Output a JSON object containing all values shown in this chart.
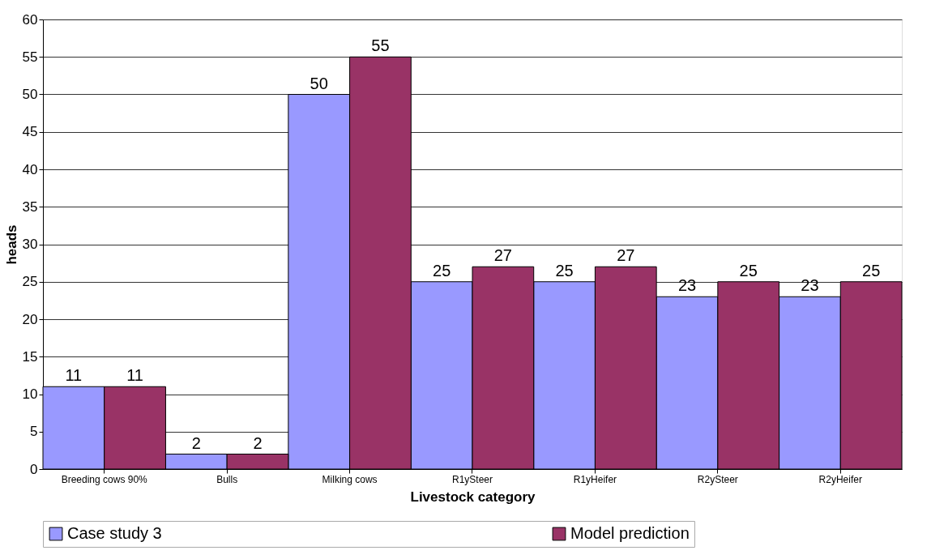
{
  "chart_data": {
    "type": "bar",
    "xlabel": "Livestock category",
    "ylabel": "heads",
    "categories": [
      "Breeding cows 90%",
      "Bulls",
      "Milking cows",
      "R1ySteer",
      "R1yHeifer",
      "R2ySteer",
      "R2yHeifer"
    ],
    "series": [
      {
        "name": "Case study 3",
        "color": "#9999ff",
        "values": [
          11,
          2,
          50,
          25,
          25,
          23,
          23
        ]
      },
      {
        "name": "Model prediction",
        "color": "#993366",
        "values": [
          11,
          2,
          55,
          27,
          27,
          25,
          25
        ]
      }
    ],
    "ylim": [
      0,
      60
    ],
    "yticks": [
      0,
      5,
      10,
      15,
      20,
      25,
      30,
      35,
      40,
      45,
      50,
      55,
      60
    ],
    "grid": "y",
    "legend": "bottom",
    "data_labels": true
  }
}
